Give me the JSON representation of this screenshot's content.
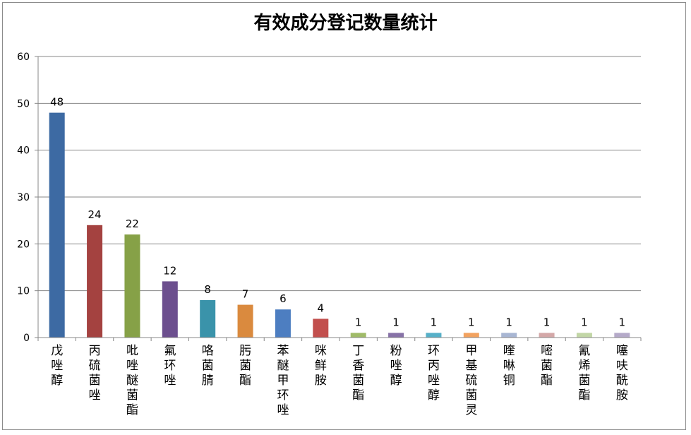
{
  "chart_data": {
    "type": "bar",
    "title": "有效成分登记数量统计",
    "xlabel": "",
    "ylabel": "",
    "ylim": [
      0,
      60
    ],
    "yticks": [
      0,
      10,
      20,
      30,
      40,
      50,
      60
    ],
    "grid": true,
    "legend": "none",
    "categories": [
      "戊唑醇",
      "丙硫菌唑",
      "吡唑醚菌酯",
      "氟环唑",
      "咯菌腈",
      "肟菌酯",
      "苯醚甲环唑",
      "咪鲜胺",
      "丁香菌酯",
      "粉唑醇",
      "环丙唑醇",
      "甲基硫菌灵",
      "喹啉铜",
      "嘧菌酯",
      "氰烯菌酯",
      "噻呋酰胺"
    ],
    "values": [
      48,
      24,
      22,
      12,
      8,
      7,
      6,
      4,
      1,
      1,
      1,
      1,
      1,
      1,
      1,
      1
    ],
    "colors": [
      "#3d6aa3",
      "#a44240",
      "#86a147",
      "#6c4f8e",
      "#3a93aa",
      "#da8a3e",
      "#4d7ec1",
      "#c24f4d",
      "#a0bb68",
      "#8772a7",
      "#57b0c8",
      "#f2a25f",
      "#a8b6d3",
      "#d4a8a8",
      "#c2d6a6",
      "#b5aac9"
    ]
  }
}
